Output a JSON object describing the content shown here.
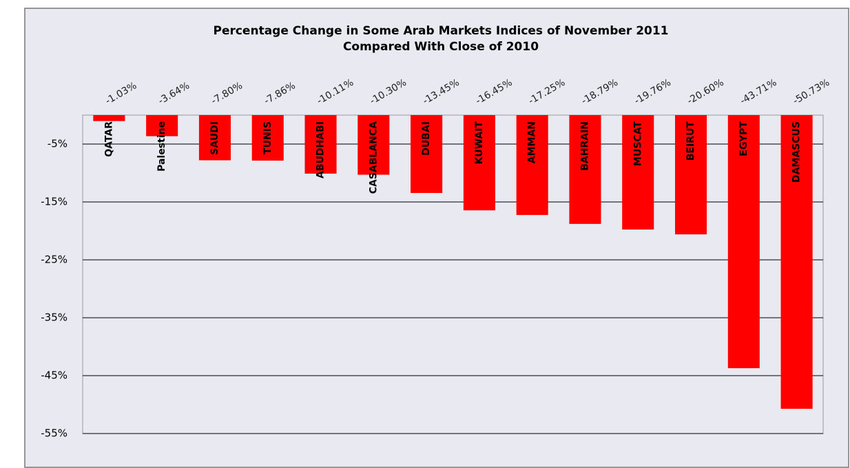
{
  "chart_data": {
    "type": "bar",
    "title": "Percentage  Change in Some Arab Markets Indices of November 2011",
    "subtitle": "Compared With Close of  2010",
    "categories": [
      "QATAR",
      "Palestine",
      "SAUDI",
      "TUNIS",
      "ABUDHABI",
      "CASABLANCA",
      "DUBAI",
      "KUWAIT",
      "AMMAN",
      "BAHRAIN",
      "MUSCAT",
      "BEIRUT",
      "EGYPT",
      "DAMASCUS"
    ],
    "values": [
      -1.03,
      -3.64,
      -7.8,
      -7.86,
      -10.11,
      -10.3,
      -13.45,
      -16.45,
      -17.25,
      -18.79,
      -19.76,
      -20.6,
      -43.71,
      -50.73
    ],
    "value_labels": [
      "-1.03%",
      "-3.64%",
      "-7.80%",
      "-7.86%",
      "-10.11%",
      "-10.30%",
      "-13.45%",
      "-16.45%",
      "-17.25%",
      "-18.79%",
      "-19.76%",
      "-20.60%",
      "-43.71%",
      "-50.73%"
    ],
    "color": "#ff0000",
    "ylim": [
      -55,
      0
    ],
    "yticks": [
      {
        "value": -5,
        "label": "-5%"
      },
      {
        "value": -15,
        "label": "-15%"
      },
      {
        "value": -25,
        "label": "-25%"
      },
      {
        "value": -35,
        "label": "-35%"
      },
      {
        "value": -45,
        "label": "-45%"
      },
      {
        "value": -55,
        "label": "-55%"
      }
    ],
    "grid": true
  }
}
